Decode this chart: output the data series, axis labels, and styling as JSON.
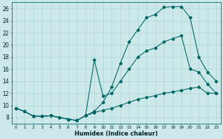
{
  "xlabel": "Humidex (Indice chaleur)",
  "xlim": [
    -0.5,
    23.5
  ],
  "ylim": [
    7,
    27
  ],
  "xtick_labels": [
    "0",
    "1",
    "2",
    "3",
    "4",
    "5",
    "6",
    "7",
    "8",
    "9",
    "10",
    "11",
    "12",
    "13",
    "14",
    "15",
    "16",
    "17",
    "18",
    "19",
    "20",
    "21",
    "22",
    "23"
  ],
  "xtick_vals": [
    0,
    1,
    2,
    3,
    4,
    5,
    6,
    7,
    8,
    9,
    10,
    11,
    12,
    13,
    14,
    15,
    16,
    17,
    18,
    19,
    20,
    21,
    22,
    23
  ],
  "ytick_vals": [
    8,
    10,
    12,
    14,
    16,
    18,
    20,
    22,
    24,
    26
  ],
  "bg_color": "#cce8e8",
  "grid_color": "#aad4d4",
  "line_color": "#006666",
  "curve_top_x": [
    0,
    1,
    2,
    3,
    4,
    5,
    6,
    7,
    8,
    9,
    10,
    11,
    12,
    13,
    14,
    15,
    16,
    17,
    18,
    19,
    20,
    21,
    22,
    23
  ],
  "curve_top_y": [
    9.5,
    9.0,
    8.2,
    8.2,
    8.3,
    8.0,
    7.7,
    7.5,
    8.3,
    9.0,
    10.5,
    13.0,
    17.0,
    20.5,
    22.5,
    24.5,
    25.0,
    26.2,
    26.3,
    26.3,
    24.5,
    18.0,
    15.5,
    14.0
  ],
  "curve_mid_x": [
    0,
    1,
    2,
    3,
    4,
    5,
    6,
    7,
    8,
    9,
    10,
    11,
    12,
    13,
    14,
    15,
    16,
    17,
    18,
    19,
    20,
    21,
    22,
    23
  ],
  "curve_mid_y": [
    9.5,
    9.0,
    8.2,
    8.2,
    8.3,
    8.0,
    7.7,
    7.5,
    8.3,
    17.5,
    11.5,
    12.0,
    14.0,
    16.0,
    18.0,
    19.0,
    19.5,
    20.5,
    21.0,
    21.5,
    16.0,
    15.5,
    13.5,
    12.0
  ],
  "curve_bot_x": [
    0,
    1,
    2,
    3,
    4,
    5,
    6,
    7,
    8,
    9,
    10,
    11,
    12,
    13,
    14,
    15,
    16,
    17,
    18,
    19,
    20,
    21,
    22,
    23
  ],
  "curve_bot_y": [
    9.5,
    9.0,
    8.2,
    8.2,
    8.3,
    8.0,
    7.7,
    7.5,
    8.3,
    8.8,
    9.2,
    9.5,
    10.0,
    10.5,
    11.0,
    11.3,
    11.6,
    12.0,
    12.2,
    12.5,
    12.8,
    13.0,
    12.0,
    12.0
  ]
}
